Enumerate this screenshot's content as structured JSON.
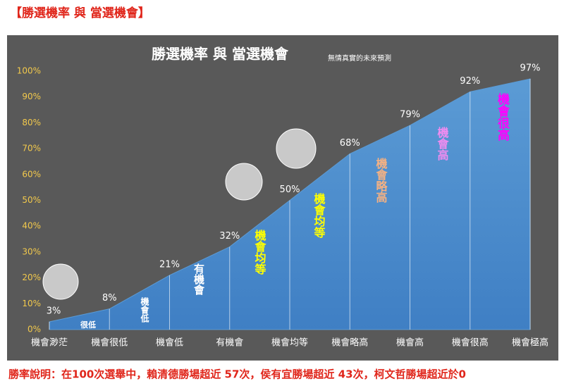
{
  "chart_data": {
    "type": "area",
    "header": "【勝選機率 與 當選機會】",
    "title": "勝選機率 與 當選機會",
    "subtitle": "無情真實的未來預測",
    "categories": [
      "機會渺茫",
      "機會很低",
      "機會低",
      "有機會",
      "機會均等",
      "機會略高",
      "機會高",
      "機會很高",
      "機會極高"
    ],
    "values": [
      3,
      8,
      21,
      32,
      50,
      68,
      79,
      92,
      97
    ],
    "value_labels": [
      "3%",
      "8%",
      "21%",
      "32%",
      "50%",
      "68%",
      "79%",
      "92%",
      "97%"
    ],
    "color": "#5b9bd5",
    "ylim": [
      0,
      100
    ],
    "yticks": [
      {
        "value": 0,
        "label": "0%"
      },
      {
        "value": 10,
        "label": "10%"
      },
      {
        "value": 20,
        "label": "20%"
      },
      {
        "value": 30,
        "label": "30%"
      },
      {
        "value": 40,
        "label": "40%"
      },
      {
        "value": 50,
        "label": "50%"
      },
      {
        "value": 60,
        "label": "60%"
      },
      {
        "value": 70,
        "label": "70%"
      },
      {
        "value": 80,
        "label": "80%"
      },
      {
        "value": 90,
        "label": "90%"
      },
      {
        "value": 100,
        "label": "100%"
      }
    ],
    "annotations": [
      {
        "text": "很低",
        "color": "#ffffff"
      },
      {
        "text": "機會低",
        "color": "#ffffff"
      },
      {
        "text": "有機會",
        "color": "#ffffff"
      },
      {
        "text": "機會均等",
        "color": "#ffff00"
      },
      {
        "text": "機會均等",
        "color": "#ffff00"
      },
      {
        "text": "機會略高",
        "color": "#f4b183"
      },
      {
        "text": "機會高",
        "color": "#f08cf0"
      },
      {
        "text": "機會很高",
        "color": "#ff00ff"
      }
    ],
    "footnote": "勝率說明：在100次選舉中，賴清德勝場超近 57次，侯有宜勝場超近 43次，柯文哲勝場超近於0"
  }
}
